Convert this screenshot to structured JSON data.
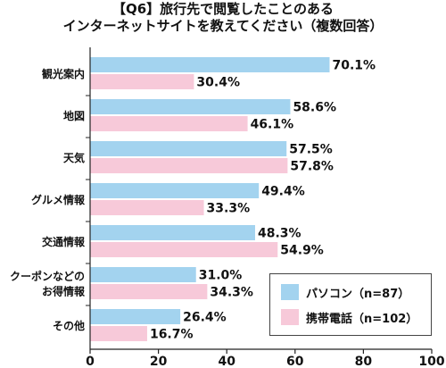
{
  "title_line1": "【Q6】旅行先で閲覧したことのある",
  "title_line2": "インターネットサイトを教えてください（複数回答）",
  "colors": {
    "pc": "#a3d3ef",
    "mobile": "#f7c9d9"
  },
  "legend": {
    "pc_label": "パソコン（n=87）",
    "mobile_label": "携帯電話（n=102）"
  },
  "chart_data": {
    "type": "bar",
    "orientation": "horizontal",
    "categories": [
      "観光案内",
      "地図",
      "天気",
      "グルメ情報",
      "交通情報",
      "クーポンなどの\nお得情報",
      "その他"
    ],
    "series": [
      {
        "name": "パソコン（n=87）",
        "values": [
          70.1,
          58.6,
          57.5,
          49.4,
          48.3,
          31.0,
          26.4
        ]
      },
      {
        "name": "携帯電話（n=102）",
        "values": [
          30.4,
          46.1,
          57.8,
          33.3,
          54.9,
          34.3,
          16.7
        ]
      }
    ],
    "value_labels": [
      [
        "70.1%",
        "58.6%",
        "57.5%",
        "49.4%",
        "48.3%",
        "31.0%",
        "26.4%"
      ],
      [
        "30.4%",
        "46.1%",
        "57.8%",
        "33.3%",
        "54.9%",
        "34.3%",
        "16.7%"
      ]
    ],
    "xlim": [
      0,
      100
    ],
    "xticks": [
      0,
      20,
      40,
      60,
      80,
      100
    ],
    "grid": false,
    "legend_position": "bottom-right"
  }
}
